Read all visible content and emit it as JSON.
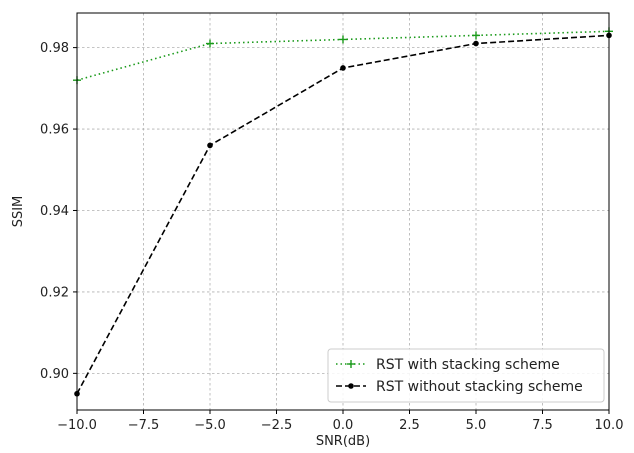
{
  "chart_data": {
    "type": "line",
    "xlabel": "SNR(dB)",
    "ylabel": "SSIM",
    "xlim": [
      -10,
      10
    ],
    "ylim": [
      0.891,
      0.9885
    ],
    "grid": true,
    "legend_position": "lower-right",
    "x_ticks": [
      -10,
      -7.5,
      -5,
      -2.5,
      0,
      2.5,
      5,
      7.5,
      10
    ],
    "x_tick_labels": [
      "−10.0",
      "−7.5",
      "−5.0",
      "−2.5",
      "0.0",
      "2.5",
      "5.0",
      "7.5",
      "10.0"
    ],
    "y_ticks": [
      0.9,
      0.92,
      0.94,
      0.96,
      0.98
    ],
    "y_tick_labels": [
      "0.90",
      "0.92",
      "0.94",
      "0.96",
      "0.98"
    ],
    "series": [
      {
        "name": "RST with stacking scheme",
        "x": [
          -10,
          -5,
          0,
          5,
          10
        ],
        "values": [
          0.972,
          0.981,
          0.982,
          0.983,
          0.984
        ],
        "color": "#1a9a1a",
        "line_style": "dotted",
        "marker": "plus"
      },
      {
        "name": "RST without stacking scheme",
        "x": [
          -10,
          -5,
          0,
          5,
          10
        ],
        "values": [
          0.895,
          0.956,
          0.975,
          0.981,
          0.983
        ],
        "color": "#000000",
        "line_style": "dashed",
        "marker": "dot"
      }
    ]
  }
}
